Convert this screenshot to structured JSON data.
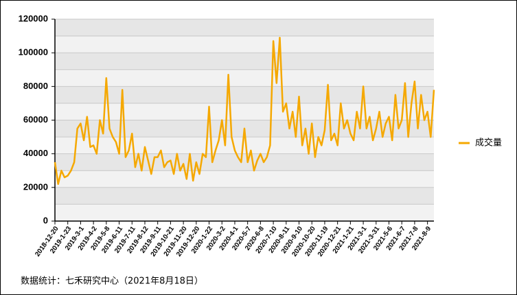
{
  "chart_data": {
    "type": "line",
    "categories": [
      "2018-12-20",
      null,
      null,
      null,
      "2019-1-23",
      null,
      null,
      null,
      "2019-3-1",
      null,
      null,
      null,
      "2019-4-2",
      null,
      null,
      null,
      "2019-5-8",
      null,
      null,
      null,
      "2019-6-11",
      null,
      null,
      null,
      "2019-7-11",
      null,
      null,
      null,
      "2019-8-12",
      null,
      null,
      null,
      "2019-9-11",
      null,
      null,
      null,
      "2019-10-21",
      null,
      null,
      null,
      "2019-11-20",
      null,
      null,
      null,
      "2019-12-20",
      null,
      null,
      null,
      "2020-1-22",
      null,
      null,
      null,
      "2020-3-2",
      null,
      null,
      null,
      "2020-4-1",
      null,
      null,
      null,
      "2020-5-7",
      null,
      null,
      null,
      "2020-6-8",
      null,
      null,
      null,
      "2020-7-10",
      null,
      null,
      null,
      "2020-8-11",
      null,
      null,
      null,
      "2020-9-10",
      null,
      null,
      null,
      "2020-10-20",
      null,
      null,
      null,
      "2020-11-19",
      null,
      null,
      null,
      "2020-12-21",
      null,
      null,
      null,
      "2021-1-21",
      null,
      null,
      null,
      "2021-3-1",
      null,
      null,
      null,
      "2021-3-31",
      null,
      null,
      null,
      "2021-5-6",
      null,
      null,
      null,
      "2021-6-7",
      null,
      null,
      null,
      "2021-7-8",
      null,
      null,
      null,
      "2021-8-9",
      null,
      null
    ],
    "series": [
      {
        "name": "成交量",
        "color": "#F5A800",
        "values": [
          35000,
          22000,
          30000,
          26000,
          27000,
          30000,
          35000,
          55000,
          58000,
          48000,
          62000,
          44000,
          45000,
          40000,
          60000,
          52000,
          85000,
          55000,
          50000,
          47000,
          40000,
          78000,
          38000,
          42000,
          52000,
          32000,
          40000,
          30000,
          44000,
          36000,
          28000,
          38000,
          38000,
          42000,
          32000,
          35000,
          36000,
          28000,
          40000,
          30000,
          34000,
          25000,
          40000,
          24000,
          35000,
          28000,
          40000,
          38000,
          68000,
          35000,
          42000,
          48000,
          60000,
          45000,
          87000,
          50000,
          42000,
          38000,
          35000,
          55000,
          35000,
          42000,
          30000,
          36000,
          40000,
          35000,
          38000,
          45000,
          107000,
          82000,
          109000,
          65000,
          70000,
          55000,
          65000,
          50000,
          74000,
          45000,
          55000,
          40000,
          58000,
          38000,
          50000,
          45000,
          54000,
          81000,
          48000,
          52000,
          45000,
          70000,
          55000,
          60000,
          52000,
          48000,
          65000,
          55000,
          80000,
          55000,
          62000,
          48000,
          55000,
          65000,
          50000,
          58000,
          62000,
          48000,
          75000,
          55000,
          60000,
          82000,
          50000,
          70000,
          83000,
          55000,
          75000,
          60000,
          65000,
          50000,
          78000
        ]
      }
    ],
    "ylim": [
      0,
      120000
    ],
    "yticks": [
      0,
      20000,
      40000,
      60000,
      80000,
      100000,
      120000
    ],
    "grid": true,
    "legend": "right",
    "note": "数据统计：七禾研究中心（2021年8月18日）"
  }
}
